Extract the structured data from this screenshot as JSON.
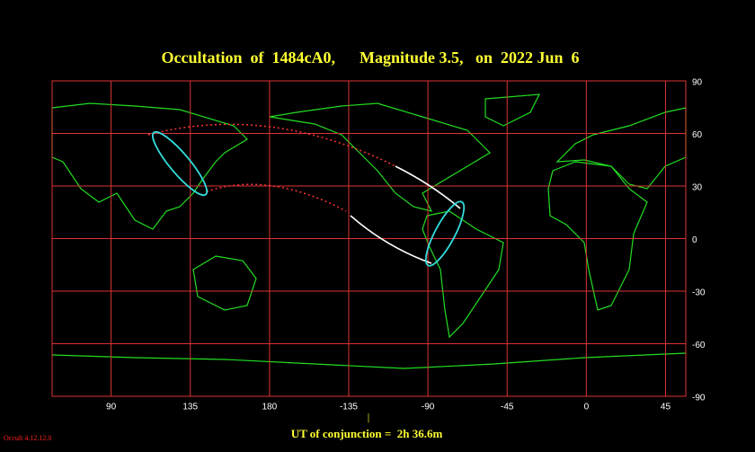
{
  "header": {
    "title": "Occultation  of  1484cA0,      Magnitude 3.5,   on  2022 Jun  6"
  },
  "map": {
    "lat_ticks": [
      90,
      60,
      30,
      0,
      -30,
      -60,
      -90
    ],
    "lon_ticks": [
      90,
      135,
      180,
      -135,
      -90,
      -45,
      0,
      45
    ]
  },
  "footer": {
    "tick": "|",
    "conjunction": "UT of conjunction =  2h 36.6m",
    "version": "Occult 4.12.12.0"
  }
}
